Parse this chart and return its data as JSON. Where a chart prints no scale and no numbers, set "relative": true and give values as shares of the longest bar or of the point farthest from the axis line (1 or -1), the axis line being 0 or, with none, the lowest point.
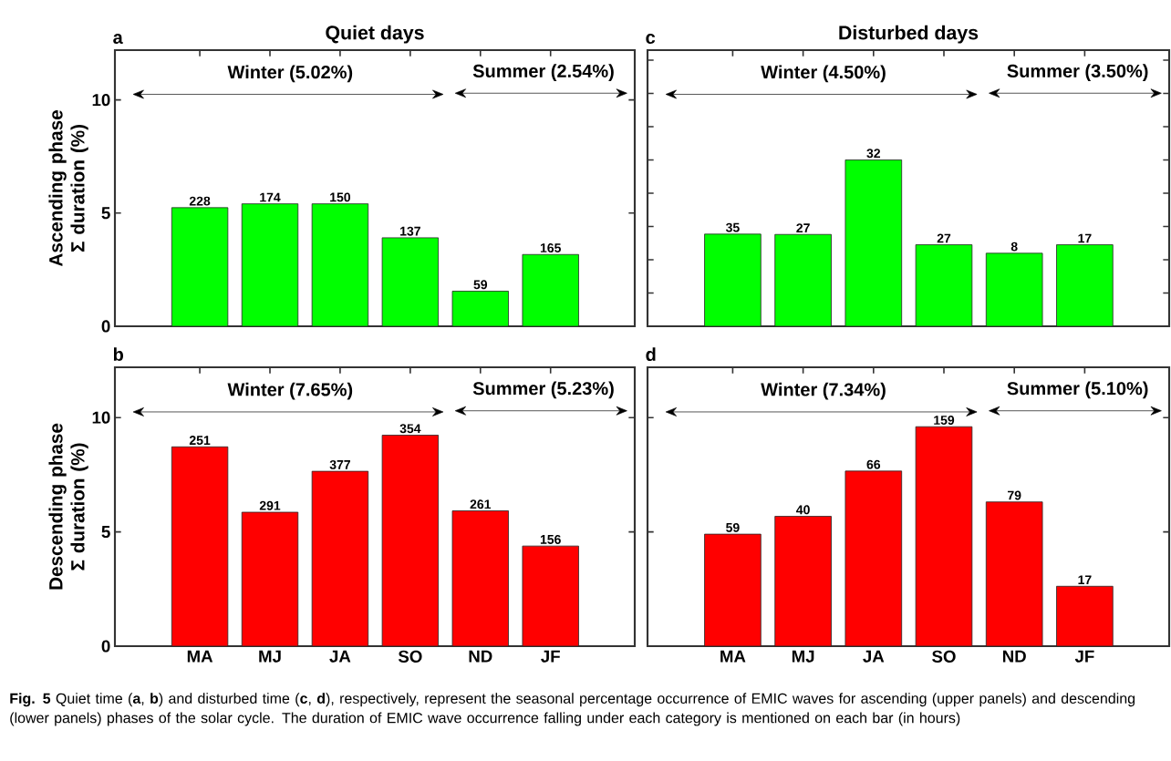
{
  "chart_data": [
    {
      "type": "bar",
      "title": "Quiet days",
      "ylabel": "Ascending phase Σ duration (%)",
      "categories": [
        null,
        null,
        null,
        null,
        null,
        null
      ],
      "values": [
        5.24,
        5.41,
        5.41,
        3.91,
        1.55,
        3.17
      ],
      "color": "#00ff00",
      "ylim": [
        0,
        12.2
      ],
      "yticks": [
        0,
        5,
        10
      ],
      "tick_labels": "y",
      "annotations": [
        "a",
        "Winter (5.02%)",
        "Summer (2.54%)",
        {
          "text": "228",
          "y": 5.24
        },
        {
          "text": "174",
          "y": 5.41
        },
        {
          "text": "150",
          "y": 5.41
        },
        {
          "text": "137",
          "y": 3.91
        },
        {
          "text": "59",
          "y": 1.55
        },
        {
          "text": "165",
          "y": 3.17
        }
      ]
    },
    {
      "type": "bar",
      "title": "Disturbed days",
      "relative": true,
      "categories": [
        null,
        null,
        null,
        null,
        null,
        null
      ],
      "values": [
        0.554,
        0.552,
        1,
        0.49,
        0.439,
        0.49
      ],
      "color": "#00ff00",
      "tick_labels": false,
      "annotations": [
        "c",
        "Winter (4.50%)",
        "Summer (3.50%)",
        {
          "text": "35",
          "y": 0.554
        },
        {
          "text": "27",
          "y": 0.552
        },
        {
          "text": "32",
          "y": 1
        },
        {
          "text": "27",
          "y": 0.49
        },
        {
          "text": "8",
          "y": 0.439
        },
        {
          "text": "17",
          "y": 0.49
        }
      ]
    },
    {
      "type": "bar",
      "ylabel": "Descending phase Σ duration (%)",
      "categories": [
        "MA",
        "MJ",
        "JA",
        "SO",
        "ND",
        "JF"
      ],
      "values": [
        8.72,
        5.86,
        7.65,
        9.23,
        5.92,
        4.38
      ],
      "color": "#ff0000",
      "ylim": [
        0,
        12.2
      ],
      "yticks": [
        0,
        5,
        10
      ],
      "annotations": [
        "b",
        "Winter (7.65%)",
        "Summer (5.23%)",
        {
          "text": "251",
          "x": "MA",
          "y": 8.72
        },
        {
          "text": "291",
          "x": "MJ",
          "y": 5.86
        },
        {
          "text": "377",
          "x": "JA",
          "y": 7.65
        },
        {
          "text": "354",
          "x": "SO",
          "y": 9.23
        },
        {
          "text": "261",
          "x": "ND",
          "y": 5.92
        },
        {
          "text": "156",
          "x": "JF",
          "y": 4.38
        }
      ]
    },
    {
      "type": "bar",
      "categories": [
        "MA",
        "MJ",
        "JA",
        "SO",
        "ND",
        "JF"
      ],
      "values": [
        4.9,
        5.68,
        7.66,
        9.6,
        6.31,
        2.62
      ],
      "color": "#ff0000",
      "ylim": [
        0,
        12.2
      ],
      "yticks": [
        0,
        5,
        10
      ],
      "tick_labels": "x",
      "annotations": [
        "d",
        "Winter (7.34%)",
        "Summer (5.10%)",
        {
          "text": "59",
          "x": "MA",
          "y": 4.9
        },
        {
          "text": "40",
          "x": "MJ",
          "y": 5.68
        },
        {
          "text": "66",
          "x": "JA",
          "y": 7.66
        },
        {
          "text": "159",
          "x": "SO",
          "y": 9.6
        },
        {
          "text": "79",
          "x": "ND",
          "y": 6.31
        },
        {
          "text": "17",
          "x": "JF",
          "y": 2.62
        },
        "**Fig. 5** Quiet time (**a**, **b**) and disturbed time (**c**, **d**), respectively, represent the seasonal percentage occurrence of EMIC waves for ascending (upper panels) and descending (lower panels) phases of the solar cycle. The duration of EMIC wave occurrence falling under each category is mentioned on each bar (in hours)"
      ]
    }
  ]
}
